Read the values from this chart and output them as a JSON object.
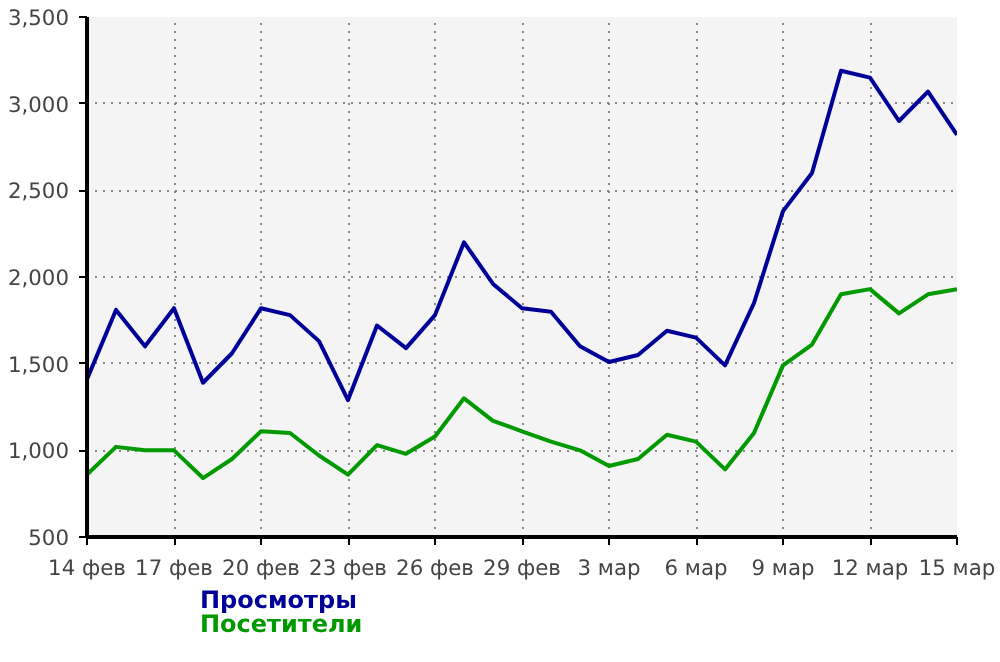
{
  "chart_data": {
    "type": "line",
    "categories": [
      "14 фев",
      null,
      null,
      "17 фев",
      null,
      null,
      "20 фев",
      null,
      null,
      "23 фев",
      null,
      null,
      "26 фев",
      null,
      null,
      "29 фев",
      null,
      null,
      "3 мар",
      null,
      null,
      "6 мар",
      null,
      null,
      "9 мар",
      null,
      null,
      "12 мар",
      null,
      null,
      "15 мар"
    ],
    "series": [
      {
        "name": "Просмотры",
        "color": "#000099",
        "values": [
          1410,
          1810,
          1600,
          1820,
          1390,
          1560,
          1820,
          1780,
          1630,
          1290,
          1720,
          1590,
          1780,
          2200,
          1960,
          1820,
          1800,
          1600,
          1510,
          1550,
          1690,
          1650,
          1490,
          1850,
          2380,
          2600,
          3190,
          3150,
          2900,
          3070,
          2820
        ]
      },
      {
        "name": "Посетители",
        "color": "#009900",
        "values": [
          860,
          1020,
          1000,
          1000,
          840,
          950,
          1110,
          1100,
          970,
          860,
          1030,
          980,
          1080,
          1300,
          1170,
          1110,
          1050,
          1000,
          910,
          950,
          1090,
          1050,
          890,
          1100,
          1490,
          1610,
          1900,
          1930,
          1790,
          1900,
          1930
        ]
      }
    ],
    "ylim": [
      500,
      3500
    ],
    "yticks": [
      500,
      {
        "value": 1000,
        "label": "1,000"
      },
      {
        "value": 1500,
        "label": "1,500"
      },
      {
        "value": 2000,
        "label": "2,000"
      },
      {
        "value": 2500,
        "label": "2,500"
      },
      {
        "value": 3000,
        "label": "3,000"
      },
      {
        "value": 3500,
        "label": "3,500"
      }
    ],
    "grid": true,
    "legend": "bottom left",
    "marker": "none",
    "line_style": "solid"
  }
}
